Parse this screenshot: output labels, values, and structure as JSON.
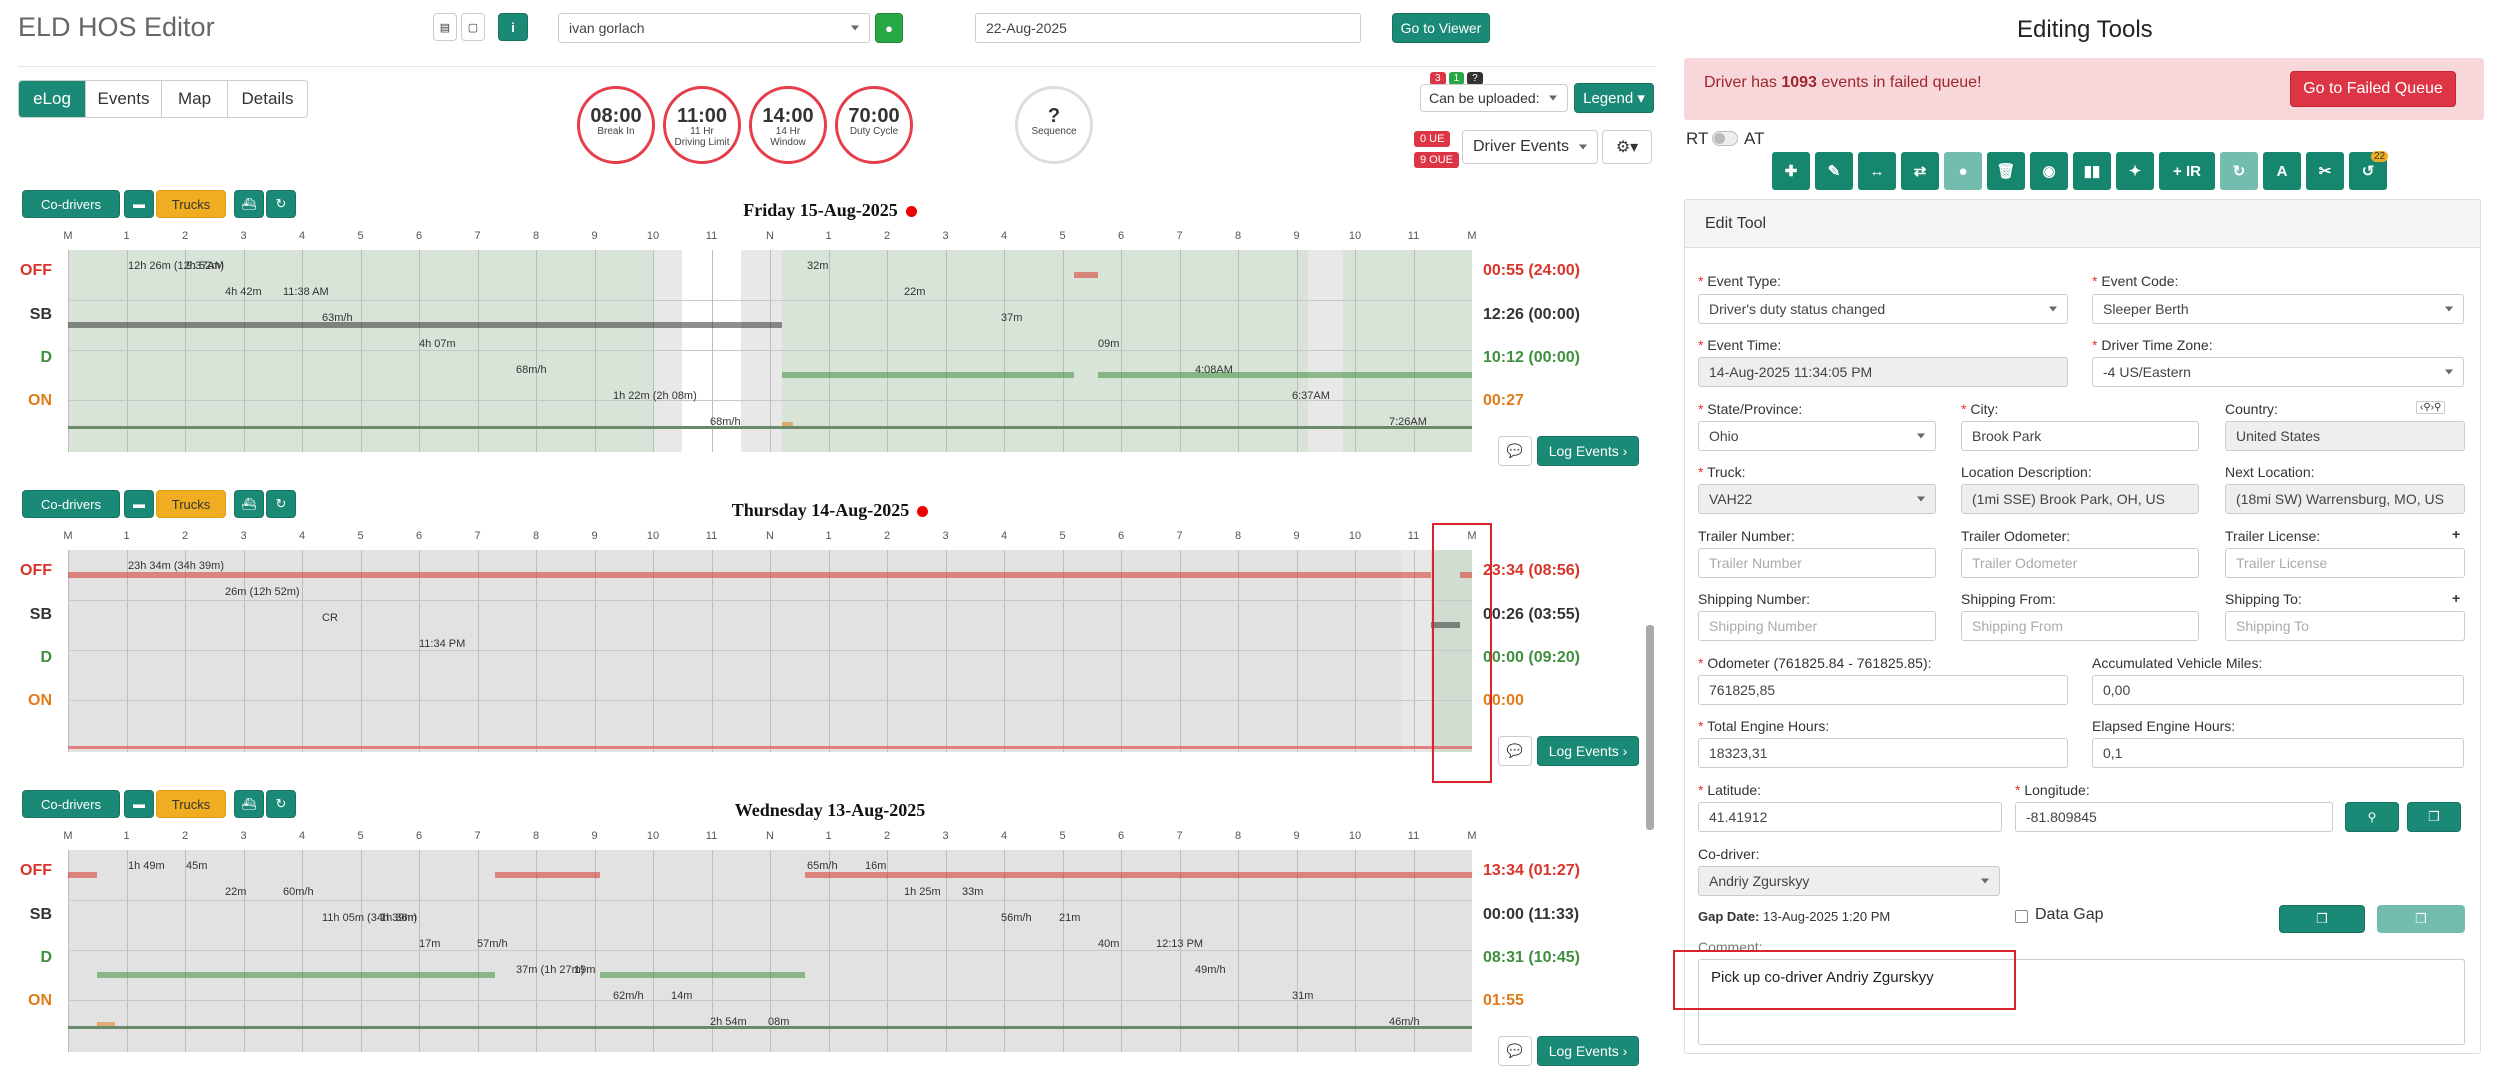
{
  "app": {
    "title": "ELD HOS Editor"
  },
  "header": {
    "driver": "ivan gorlach",
    "date": "22-Aug-2025",
    "go_viewer": "Go to Viewer"
  },
  "tabs": [
    {
      "label": "eLog",
      "active": true
    },
    {
      "label": "Events"
    },
    {
      "label": "Map"
    },
    {
      "label": "Details"
    }
  ],
  "clocks": [
    {
      "time": "08:00",
      "label": "Break In"
    },
    {
      "time": "11:00",
      "label": "11 Hr\nDriving Limit"
    },
    {
      "time": "14:00",
      "label": "14 Hr\nWindow"
    },
    {
      "time": "70:00",
      "label": "Duty Cycle"
    }
  ],
  "sequence": {
    "value": "?",
    "label": "Sequence"
  },
  "upload": {
    "badge_red": "3",
    "badge_green": "1",
    "badge_dark": "?",
    "label": "Can be uploaded:",
    "legend": "Legend"
  },
  "ue": {
    "ue": "0 UE",
    "oue": "9 OUE",
    "driver_events": "Driver Events"
  },
  "toolbar": {
    "codrivers": "Co-drivers",
    "trucks": "Trucks"
  },
  "hours": [
    "M",
    "1",
    "2",
    "3",
    "4",
    "5",
    "6",
    "7",
    "8",
    "9",
    "10",
    "11",
    "N",
    "1",
    "2",
    "3",
    "4",
    "5",
    "6",
    "7",
    "8",
    "9",
    "10",
    "11",
    "M"
  ],
  "status_labels": [
    "OFF",
    "SB",
    "D",
    "ON"
  ],
  "log_events": "Log Events",
  "days": [
    {
      "title": "Friday 15-Aug-2025",
      "red_dot": true,
      "totals": [
        "00:55 (24:00)",
        "12:26 (00:00)",
        "10:12 (00:00)",
        "00:27"
      ],
      "notes": [
        "12h 26m (12h 52m)",
        "4h 42m",
        "63m/h",
        "4h 07m",
        "68m/h",
        "1h 22m (2h 08m)",
        "68m/h",
        "32m",
        "22m",
        "37m",
        "09m",
        "4:08AM",
        "6:37AM",
        "7:26AM",
        "9:37AM",
        "11:38 AM"
      ]
    },
    {
      "title": "Thursday 14-Aug-2025",
      "red_dot": true,
      "totals": [
        "23:34 (08:56)",
        "00:26 (03:55)",
        "00:00 (09:20)",
        "00:00"
      ],
      "notes": [
        "23h 34m (34h 39m)",
        "26m (12h 52m)",
        "CR",
        "11:34 PM"
      ]
    },
    {
      "title": "Wednesday 13-Aug-2025",
      "red_dot": false,
      "totals": [
        "13:34 (01:27)",
        "00:00 (11:33)",
        "08:31 (10:45)",
        "01:55"
      ],
      "notes": [
        "1h 49m",
        "22m",
        "11h 05m (34h 39m)",
        "17m",
        "37m (1h 27m)",
        "62m/h",
        "2h 54m",
        "65m/h",
        "1h 25m",
        "56m/h",
        "40m",
        "49m/h",
        "31m",
        "46m/h",
        "45m",
        "60m/h",
        "1h 36m",
        "57m/h",
        "19m",
        "14m",
        "08m",
        "16m",
        "33m",
        "21m",
        "12:13 PM"
      ]
    }
  ],
  "editing": {
    "title": "Editing Tools",
    "alert_pre": "Driver has ",
    "alert_count": "1093",
    "alert_post": " events in failed queue!",
    "failed_btn": "Go to Failed Queue",
    "rt": "RT",
    "at": "AT",
    "tool_badge": "22",
    "edit_tool": "Edit Tool",
    "event_type_label": "Event Type:",
    "event_type": "Driver's duty status changed",
    "event_code_label": "Event Code:",
    "event_code": "Sleeper Berth",
    "event_time_label": "Event Time:",
    "event_time": "14-Aug-2025 11:34:05 PM",
    "tz_label": "Driver Time Zone:",
    "tz": "-4 US/Eastern",
    "state_label": "State/Province:",
    "state": "Ohio",
    "city_label": "City:",
    "city": "Brook Park",
    "country_label": "Country:",
    "country": "United States",
    "truck_label": "Truck:",
    "truck": "VAH22",
    "locdesc_label": "Location Description:",
    "locdesc": "(1mi SSE) Brook Park, OH, US",
    "nextloc_label": "Next Location:",
    "nextloc": "(18mi SW) Warrensburg, MO, US",
    "trailer_num_label": "Trailer Number:",
    "trailer_num_ph": "Trailer Number",
    "trailer_odo_label": "Trailer Odometer:",
    "trailer_odo_ph": "Trailer Odometer",
    "trailer_lic_label": "Trailer License:",
    "trailer_lic_ph": "Trailer License",
    "ship_num_label": "Shipping Number:",
    "ship_num_ph": "Shipping Number",
    "ship_from_label": "Shipping From:",
    "ship_from_ph": "Shipping From",
    "ship_to_label": "Shipping To:",
    "ship_to_ph": "Shipping To",
    "odometer_label": "Odometer (761825.84 - 761825.85):",
    "odometer": "761825,85",
    "acc_miles_label": "Accumulated Vehicle Miles:",
    "acc_miles": "0,00",
    "eng_hours_label": "Total Engine Hours:",
    "eng_hours": "18323,31",
    "elapsed_label": "Elapsed Engine Hours:",
    "elapsed": "0,1",
    "lat_label": "Latitude:",
    "lat": "41.41912",
    "lon_label": "Longitude:",
    "lon": "-81.809845",
    "codriver_label": "Co-driver:",
    "codriver": "Andriy Zgurskyy",
    "gap_date_label": "Gap Date:",
    "gap_date": "13-Aug-2025 1:20 PM",
    "data_gap": "Data Gap",
    "comment_label": "Comment:",
    "comment": "Pick up co-driver Andriy Zgurskyy"
  },
  "colors": {
    "teal": "#1a8a76",
    "off": "#d9342b",
    "sb": "#333333",
    "d": "#3f8f3f",
    "on": "#e07b1a"
  }
}
